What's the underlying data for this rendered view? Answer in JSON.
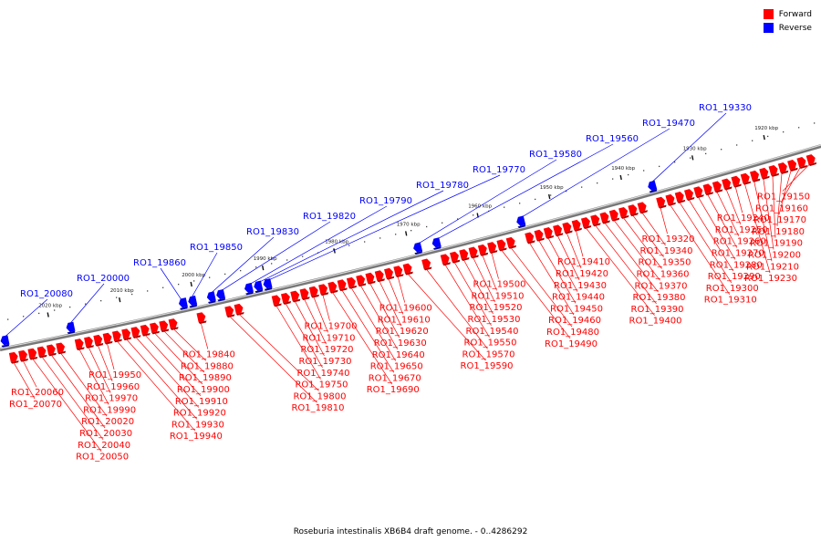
{
  "caption": "Roseburia intestinalis XB6B4 draft genome. - 0..4286292",
  "legend": {
    "forward_label": "Forward",
    "reverse_label": "Reverse",
    "forward_color": "#ff0000",
    "reverse_color": "#0000ff"
  },
  "axis_labels": [
    {
      "text": "1920 kbp",
      "pos": 1920
    },
    {
      "text": "1930 kbp",
      "pos": 1930
    },
    {
      "text": "1940 kbp",
      "pos": 1940
    },
    {
      "text": "1950 kbp",
      "pos": 1950
    },
    {
      "text": "1960 kbp",
      "pos": 1960
    },
    {
      "text": "1970 kbp",
      "pos": 1970
    },
    {
      "text": "1980 kbp",
      "pos": 1980
    },
    {
      "text": "1990 kbp",
      "pos": 1990
    },
    {
      "text": "2000 kbp",
      "pos": 2000
    },
    {
      "text": "2010 kbp",
      "pos": 2010
    },
    {
      "text": "2020 kbp",
      "pos": 2020
    }
  ],
  "genes": [
    {
      "name": "RO1_19150",
      "strand": "forward"
    },
    {
      "name": "RO1_19160",
      "strand": "forward"
    },
    {
      "name": "RO1_19170",
      "strand": "forward"
    },
    {
      "name": "RO1_19180",
      "strand": "forward"
    },
    {
      "name": "RO1_19190",
      "strand": "forward"
    },
    {
      "name": "RO1_19200",
      "strand": "forward"
    },
    {
      "name": "RO1_19210",
      "strand": "forward"
    },
    {
      "name": "RO1_19230",
      "strand": "forward"
    },
    {
      "name": "RO1_19240",
      "strand": "forward"
    },
    {
      "name": "RO1_19250",
      "strand": "forward"
    },
    {
      "name": "RO1_19260",
      "strand": "forward"
    },
    {
      "name": "RO1_19270",
      "strand": "forward"
    },
    {
      "name": "RO1_19280",
      "strand": "forward"
    },
    {
      "name": "RO1_19290",
      "strand": "forward"
    },
    {
      "name": "RO1_19300",
      "strand": "forward"
    },
    {
      "name": "RO1_19310",
      "strand": "forward"
    },
    {
      "name": "RO1_19320",
      "strand": "forward"
    },
    {
      "name": "RO1_19330",
      "strand": "reverse"
    },
    {
      "name": "RO1_19340",
      "strand": "forward"
    },
    {
      "name": "RO1_19350",
      "strand": "forward"
    },
    {
      "name": "RO1_19360",
      "strand": "forward"
    },
    {
      "name": "RO1_19370",
      "strand": "forward"
    },
    {
      "name": "RO1_19380",
      "strand": "forward"
    },
    {
      "name": "RO1_19390",
      "strand": "forward"
    },
    {
      "name": "RO1_19400",
      "strand": "forward"
    },
    {
      "name": "RO1_19410",
      "strand": "forward"
    },
    {
      "name": "RO1_19420",
      "strand": "forward"
    },
    {
      "name": "RO1_19430",
      "strand": "forward"
    },
    {
      "name": "RO1_19440",
      "strand": "forward"
    },
    {
      "name": "RO1_19450",
      "strand": "forward"
    },
    {
      "name": "RO1_19460",
      "strand": "forward"
    },
    {
      "name": "RO1_19470",
      "strand": "reverse"
    },
    {
      "name": "RO1_19480",
      "strand": "forward"
    },
    {
      "name": "RO1_19490",
      "strand": "forward"
    },
    {
      "name": "RO1_19500",
      "strand": "forward"
    },
    {
      "name": "RO1_19510",
      "strand": "forward"
    },
    {
      "name": "RO1_19520",
      "strand": "forward"
    },
    {
      "name": "RO1_19530",
      "strand": "forward"
    },
    {
      "name": "RO1_19540",
      "strand": "forward"
    },
    {
      "name": "RO1_19550",
      "strand": "forward"
    },
    {
      "name": "RO1_19560",
      "strand": "reverse"
    },
    {
      "name": "RO1_19570",
      "strand": "forward"
    },
    {
      "name": "RO1_19580",
      "strand": "reverse"
    },
    {
      "name": "RO1_19590",
      "strand": "forward"
    },
    {
      "name": "RO1_19600",
      "strand": "forward"
    },
    {
      "name": "RO1_19610",
      "strand": "forward"
    },
    {
      "name": "RO1_19620",
      "strand": "forward"
    },
    {
      "name": "RO1_19630",
      "strand": "forward"
    },
    {
      "name": "RO1_19640",
      "strand": "forward"
    },
    {
      "name": "RO1_19650",
      "strand": "forward"
    },
    {
      "name": "RO1_19670",
      "strand": "forward"
    },
    {
      "name": "RO1_19690",
      "strand": "forward"
    },
    {
      "name": "RO1_19700",
      "strand": "forward"
    },
    {
      "name": "RO1_19710",
      "strand": "forward"
    },
    {
      "name": "RO1_19720",
      "strand": "forward"
    },
    {
      "name": "RO1_19730",
      "strand": "forward"
    },
    {
      "name": "RO1_19740",
      "strand": "forward"
    },
    {
      "name": "RO1_19750",
      "strand": "forward"
    },
    {
      "name": "RO1_19770",
      "strand": "reverse"
    },
    {
      "name": "RO1_19780",
      "strand": "reverse"
    },
    {
      "name": "RO1_19790",
      "strand": "reverse"
    },
    {
      "name": "RO1_19800",
      "strand": "forward"
    },
    {
      "name": "RO1_19810",
      "strand": "forward"
    },
    {
      "name": "RO1_19820",
      "strand": "reverse"
    },
    {
      "name": "RO1_19830",
      "strand": "reverse"
    },
    {
      "name": "RO1_19840",
      "strand": "forward"
    },
    {
      "name": "RO1_19850",
      "strand": "reverse"
    },
    {
      "name": "RO1_19860",
      "strand": "reverse"
    },
    {
      "name": "RO1_19880",
      "strand": "forward"
    },
    {
      "name": "RO1_19890",
      "strand": "forward"
    },
    {
      "name": "RO1_19900",
      "strand": "forward"
    },
    {
      "name": "RO1_19910",
      "strand": "forward"
    },
    {
      "name": "RO1_19920",
      "strand": "forward"
    },
    {
      "name": "RO1_19930",
      "strand": "forward"
    },
    {
      "name": "RO1_19940",
      "strand": "forward"
    },
    {
      "name": "RO1_19950",
      "strand": "forward"
    },
    {
      "name": "RO1_19960",
      "strand": "forward"
    },
    {
      "name": "RO1_19970",
      "strand": "forward"
    },
    {
      "name": "RO1_19990",
      "strand": "forward"
    },
    {
      "name": "RO1_20000",
      "strand": "reverse"
    },
    {
      "name": "RO1_20020",
      "strand": "forward"
    },
    {
      "name": "RO1_20030",
      "strand": "forward"
    },
    {
      "name": "RO1_20040",
      "strand": "forward"
    },
    {
      "name": "RO1_20050",
      "strand": "forward"
    },
    {
      "name": "RO1_20060",
      "strand": "forward"
    },
    {
      "name": "RO1_20070",
      "strand": "forward"
    },
    {
      "name": "RO1_20080",
      "strand": "reverse"
    }
  ]
}
